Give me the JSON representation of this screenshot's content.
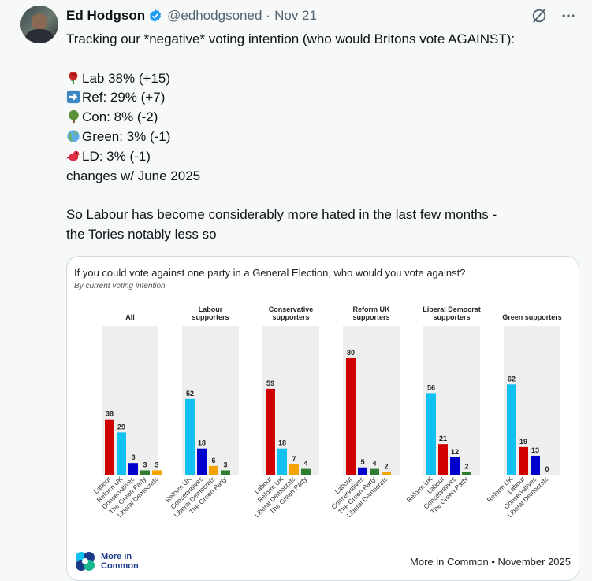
{
  "author": {
    "name": "Ed Hodgson",
    "handle": "@edhodgsoned",
    "separator": "·",
    "date": "Nov 21"
  },
  "tweet": {
    "intro": "Tracking our *negative* voting intention (who would Britons vote AGAINST):",
    "lines": [
      {
        "icon": "rose-icon",
        "text": "Lab 38%  (+15)"
      },
      {
        "icon": "arrow-right-icon",
        "text": "Ref: 29% (+7)"
      },
      {
        "icon": "tree-icon",
        "text": "Con: 8% (-2)"
      },
      {
        "icon": "globe-icon",
        "text": "Green: 3%  (-1)"
      },
      {
        "icon": "bird-icon",
        "text": "LD: 3% (-1)"
      }
    ],
    "changes": "changes w/ June 2025",
    "body_line1": "So Labour has become considerably more hated in the last few months -",
    "body_line2": "the Tories notably less so"
  },
  "card": {
    "title": "If you could vote against one party in a General Election, who would you vote against?",
    "subtitle": "By current voting intention",
    "logo_line1": "More in",
    "logo_line2": "Common",
    "source": "More in Common • November 2025"
  },
  "colors": {
    "Labour": "#d00000",
    "Reform UK": "#12c1ef",
    "Conservatives": "#0000cc",
    "The Green Party": "#2e7d32",
    "Liberal Democrats": "#f5a300",
    "panel_bg": "#eeeeee"
  },
  "chart_data": {
    "type": "bar",
    "title": "If you could vote against one party in a General Election, who would you vote against?",
    "subtitle": "By current voting intention",
    "ylim": [
      0,
      100
    ],
    "panels": [
      {
        "title": [
          "All"
        ],
        "categories": [
          "Labour",
          "Reform UK",
          "Conservatives",
          "The Green Party",
          "Liberal Democrats"
        ],
        "values": [
          38,
          29,
          8,
          3,
          3
        ]
      },
      {
        "title": [
          "Labour",
          "supporters"
        ],
        "categories": [
          "Reform UK",
          "Conservatives",
          "Liberal Democrats",
          "The Green Party"
        ],
        "values": [
          52,
          18,
          6,
          3
        ]
      },
      {
        "title": [
          "Conservative",
          "supporters"
        ],
        "categories": [
          "Labour",
          "Reform UK",
          "Liberal Democrats",
          "The Green Party"
        ],
        "values": [
          59,
          18,
          7,
          4
        ]
      },
      {
        "title": [
          "Reform UK",
          "supporters"
        ],
        "categories": [
          "Labour",
          "Conservatives",
          "The Green Party",
          "Liberal Democrats"
        ],
        "values": [
          80,
          5,
          4,
          2
        ]
      },
      {
        "title": [
          "Liberal Democrat",
          "supporters"
        ],
        "categories": [
          "Reform UK",
          "Labour",
          "Conservatives",
          "The Green Party"
        ],
        "values": [
          56,
          21,
          12,
          2
        ]
      },
      {
        "title": [
          "Green supporters"
        ],
        "categories": [
          "Reform UK",
          "Labour",
          "Conservatives",
          "Liberal Democrats"
        ],
        "values": [
          62,
          19,
          13,
          0
        ]
      }
    ]
  }
}
